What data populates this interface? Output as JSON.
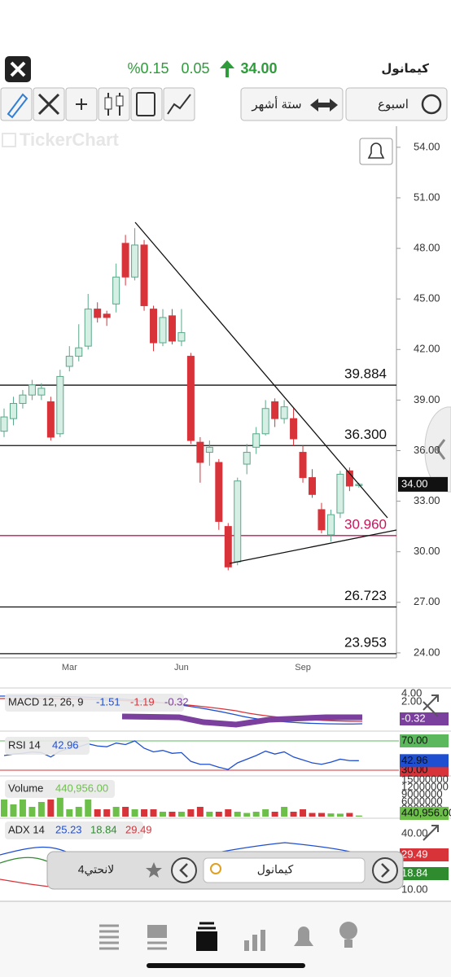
{
  "header": {
    "symbol": "كيمانول",
    "price": "34.00",
    "change": "0.05",
    "change_pct": "%0.15"
  },
  "toolbar": {
    "period": "ستة أشهر",
    "interval": "اسبوع"
  },
  "watermark": "TickerChart",
  "chart_data": [
    {
      "type": "candlestick",
      "up_color": "#5aa78a",
      "down_color": "#d9333a",
      "categories": [
        null,
        null,
        null,
        null,
        null,
        null,
        null,
        "Mar",
        null,
        null,
        null,
        null,
        null,
        null,
        null,
        null,
        null,
        null,
        null,
        "Jun",
        null,
        null,
        null,
        null,
        null,
        null,
        null,
        null,
        null,
        null,
        null,
        null,
        "Sep",
        null,
        null,
        null,
        null,
        null,
        null
      ],
      "open": [
        37.15,
        37.9,
        38.8,
        39.3,
        39.3,
        38.9,
        37.0,
        41.0,
        41.6,
        42.2,
        44.4,
        44.1,
        44.7,
        48.3,
        46.3,
        48.2,
        44.4,
        42.4,
        44.0,
        42.5,
        41.6,
        36.5,
        35.9,
        35.3,
        31.5,
        29.4,
        35.2,
        36.2,
        37.0,
        38.9,
        37.9,
        37.9,
        35.9,
        34.4,
        32.5,
        31.0,
        32.3,
        34.8,
        33.95
      ],
      "high": [
        38.5,
        39.2,
        39.6,
        40.2,
        40.0,
        39.2,
        40.8,
        42.2,
        43.5,
        45.3,
        44.8,
        44.3,
        47.1,
        48.8,
        49.2,
        48.5,
        44.6,
        44.4,
        44.4,
        44.4,
        41.8,
        36.8,
        36.6,
        35.5,
        31.7,
        34.4,
        36.4,
        37.4,
        39.0,
        39.1,
        39.0,
        38.5,
        36.3,
        34.9,
        32.9,
        32.5,
        34.8,
        35.0,
        34.1
      ],
      "low": [
        36.8,
        37.5,
        38.5,
        39.0,
        39.0,
        36.6,
        36.8,
        40.7,
        41.3,
        42.0,
        43.6,
        43.4,
        44.2,
        45.8,
        46.1,
        44.3,
        41.9,
        42.2,
        42.3,
        42.2,
        36.4,
        34.1,
        35.1,
        31.3,
        28.9,
        29.2,
        34.6,
        35.8,
        36.9,
        37.4,
        37.6,
        36.3,
        34.1,
        33.2,
        31.1,
        30.6,
        32.0,
        33.6,
        33.8
      ],
      "close": [
        38.0,
        38.8,
        39.3,
        39.9,
        39.7,
        36.8,
        40.4,
        41.6,
        42.1,
        44.4,
        43.9,
        43.9,
        46.3,
        46.3,
        48.2,
        44.6,
        42.4,
        43.9,
        42.5,
        43.0,
        36.6,
        35.3,
        36.2,
        31.8,
        29.1,
        34.2,
        35.9,
        37.0,
        38.5,
        37.9,
        38.6,
        36.7,
        34.4,
        33.4,
        31.3,
        32.2,
        34.6,
        33.9,
        34.0
      ],
      "ylim": [
        23.85,
        55.25
      ],
      "yticks": [
        {
          "value": 54,
          "label": "54.00"
        },
        {
          "value": 51,
          "label": "51.00"
        },
        {
          "value": 48,
          "label": "48.00"
        },
        {
          "value": 45,
          "label": "45.00"
        },
        {
          "value": 42,
          "label": "42.00"
        },
        {
          "value": 39,
          "label": "39.00"
        },
        {
          "value": 36,
          "label": "36.00"
        },
        {
          "value": 33,
          "label": "33.00"
        },
        {
          "value": 30,
          "label": "30.00"
        },
        {
          "value": 27,
          "label": "27.00"
        },
        {
          "value": 24,
          "label": "24.00"
        }
      ],
      "levels": [
        {
          "value": 39.884,
          "label": "39.884",
          "color": "#111111"
        },
        {
          "value": 36.3,
          "label": "36.300",
          "color": "#111111"
        },
        {
          "value": 30.96,
          "label": "30.960",
          "color": "#c2185b"
        },
        {
          "value": 26.723,
          "label": "26.723",
          "color": "#111111"
        },
        {
          "value": 23.953,
          "label": "23.953",
          "color": "#111111"
        }
      ],
      "last": {
        "value": 34,
        "label": "34.00"
      }
    },
    {
      "type": "line",
      "title": "RSI 14",
      "color": "#1f4fd1",
      "ylim": [
        23.3,
        81.1
      ],
      "yticks": [
        {
          "value": 70,
          "label": "70.00"
        },
        {
          "value": 30,
          "label": "30.00"
        }
      ],
      "tick_colors": [
        "#5cb85c",
        "#d9333a"
      ],
      "values": [
        50,
        52,
        53,
        55,
        54,
        48,
        56,
        60,
        62,
        66,
        63,
        62,
        67,
        65,
        70,
        60,
        55,
        57,
        53,
        54,
        42,
        38,
        38,
        34,
        31,
        40,
        45,
        50,
        56,
        52,
        55,
        48,
        44,
        40,
        38,
        41,
        45,
        43,
        42.96
      ],
      "value_labels": [
        "42.96"
      ]
    },
    {
      "type": "bar",
      "title": "Volume",
      "ylim": [
        0,
        15000000
      ],
      "yticks": [
        15000000,
        12000000,
        9000000,
        6000000,
        3000000
      ],
      "values": [
        7000000,
        5000000,
        7000000,
        4000000,
        6000000,
        7000000,
        8000000,
        3000000,
        4000000,
        7000000,
        3000000,
        3000000,
        4000000,
        4000000,
        3000000,
        3000000,
        3000000,
        2000000,
        2000000,
        2000000,
        3000000,
        4000000,
        2000000,
        2000000,
        3000000,
        2000000,
        1500000,
        2000000,
        3000000,
        2000000,
        4000000,
        2000000,
        3000000,
        1500000,
        1500000,
        1300000,
        1200000,
        1500000,
        440956
      ],
      "value_labels": [
        "440,956.00"
      ]
    },
    {
      "type": "macd",
      "title": "MACD 12, 26, 9",
      "readings": [
        "-1.51",
        "-1.19",
        "-0.32"
      ],
      "axis_labels": [
        "4.00",
        "2.00"
      ]
    },
    {
      "type": "adx",
      "title": "ADX 14",
      "readings": [
        "25.23",
        "18.84",
        "29.49"
      ],
      "axis_labels": [
        "40.00",
        "29.49",
        "18.84",
        "10.00"
      ]
    }
  ],
  "search": {
    "watchlist": "لانحتي4",
    "symbol": "كيمانول"
  }
}
